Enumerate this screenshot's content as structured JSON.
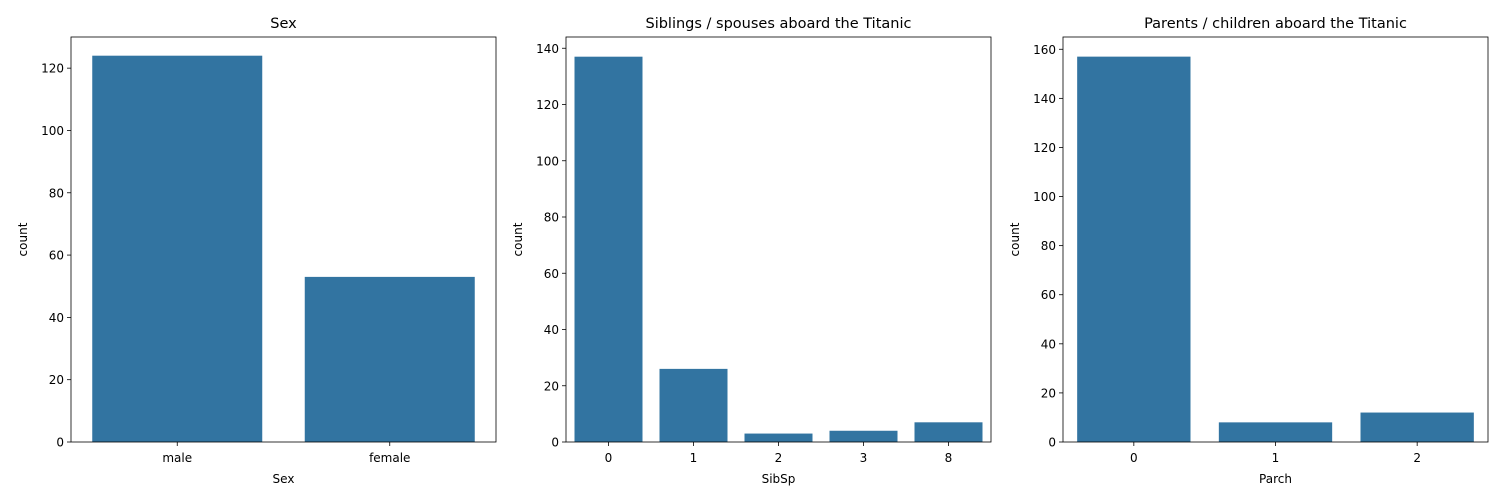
{
  "chart_data": [
    {
      "type": "bar",
      "title": "Sex",
      "xlabel": "Sex",
      "ylabel": "count",
      "categories": [
        "male",
        "female"
      ],
      "values": [
        124,
        53
      ],
      "ylim": [
        0,
        130
      ],
      "yticks": [
        0,
        20,
        40,
        60,
        80,
        100,
        120
      ],
      "grid": false,
      "color": "#3274a1"
    },
    {
      "type": "bar",
      "title": "Siblings / spouses aboard the Titanic",
      "xlabel": "SibSp",
      "ylabel": "count",
      "categories": [
        "0",
        "1",
        "2",
        "3",
        "8"
      ],
      "values": [
        137,
        26,
        3,
        4,
        7
      ],
      "ylim": [
        0,
        144
      ],
      "yticks": [
        0,
        20,
        40,
        60,
        80,
        100,
        120,
        140
      ],
      "grid": false,
      "color": "#3274a1"
    },
    {
      "type": "bar",
      "title": "Parents / children aboard the Titanic",
      "xlabel": "Parch",
      "ylabel": "count",
      "categories": [
        "0",
        "1",
        "2"
      ],
      "values": [
        157,
        8,
        12
      ],
      "ylim": [
        0,
        165
      ],
      "yticks": [
        0,
        20,
        40,
        60,
        80,
        100,
        120,
        140,
        160
      ],
      "grid": false,
      "color": "#3274a1"
    }
  ]
}
